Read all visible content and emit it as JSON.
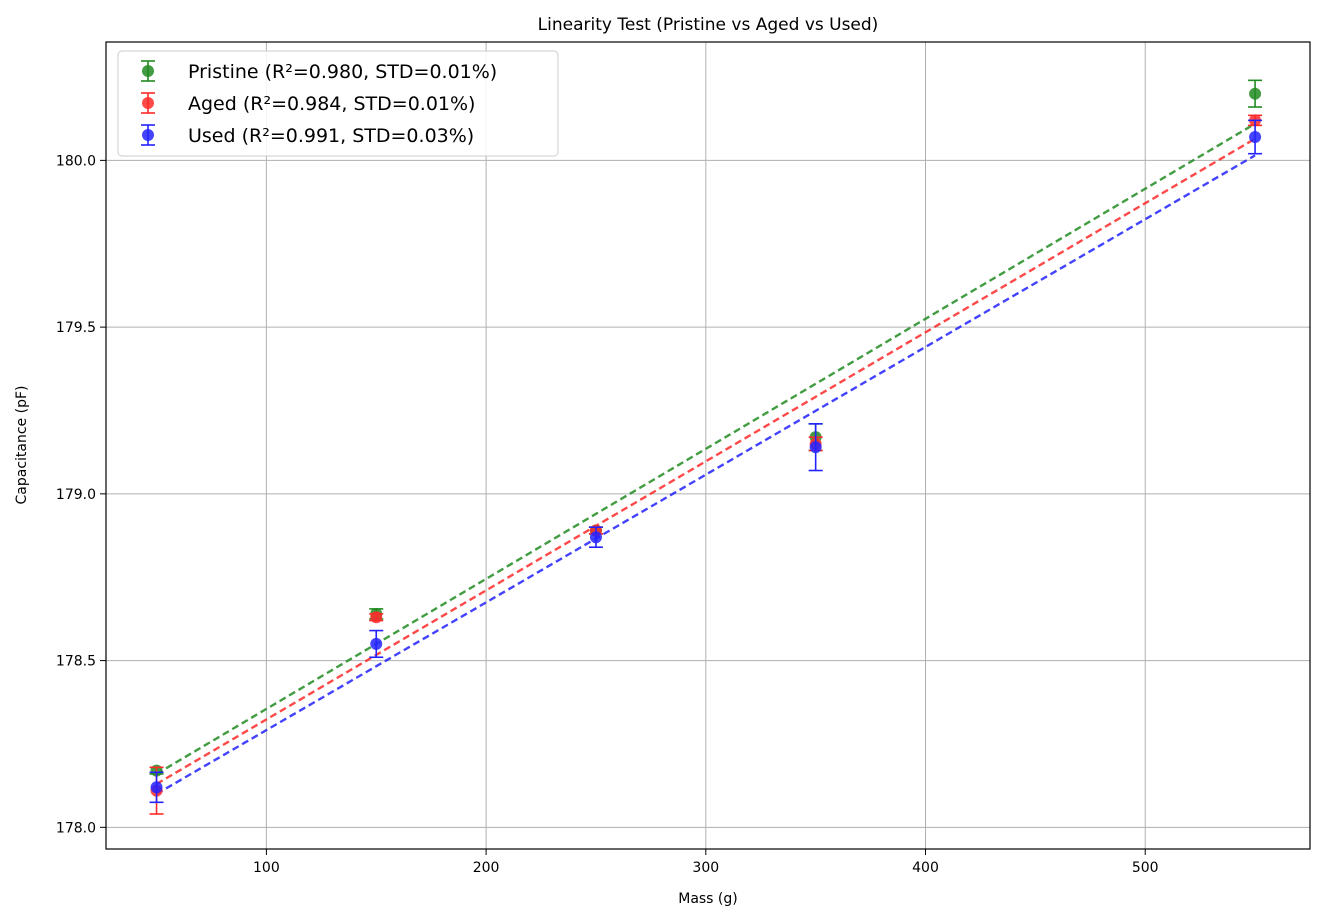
{
  "chart_data": {
    "type": "scatter",
    "title": "Linearity Test (Pristine vs Aged vs Used)",
    "xlabel": "Mass (g)",
    "ylabel": "Capacitance (pF)",
    "xlim": [
      27,
      575
    ],
    "ylim": [
      177.935,
      180.355
    ],
    "xticks": [
      100,
      200,
      300,
      400,
      500
    ],
    "yticks": [
      178.0,
      178.5,
      179.0,
      179.5,
      180.0
    ],
    "xtick_labels": [
      "100",
      "200",
      "300",
      "400",
      "500"
    ],
    "ytick_labels": [
      "178.0",
      "178.5",
      "179.0",
      "179.5",
      "180.0"
    ],
    "grid": true,
    "legend_position": "top-left",
    "x": [
      50,
      150,
      250,
      350,
      550
    ],
    "series": [
      {
        "name": "Pristine (R²=0.980, STD=0.01%)",
        "color": "#228b22",
        "values": [
          178.17,
          178.64,
          178.89,
          179.17,
          180.2
        ],
        "errors": [
          0.01,
          0.015,
          0.01,
          0.04,
          0.04
        ],
        "fit": [
          178.16,
          180.11
        ]
      },
      {
        "name": "Aged (R²=0.984, STD=0.01%)",
        "color": "#ff2a2a",
        "values": [
          178.11,
          178.63,
          178.89,
          179.15,
          180.12
        ],
        "errors": [
          0.07,
          0.01,
          0.01,
          0.02,
          0.015
        ],
        "fit": [
          178.13,
          180.065
        ]
      },
      {
        "name": "Used (R²=0.991, STD=0.03%)",
        "color": "#2323ff",
        "values": [
          178.12,
          178.55,
          178.87,
          179.14,
          180.07
        ],
        "errors": [
          0.045,
          0.04,
          0.03,
          0.07,
          0.05
        ],
        "fit": [
          178.1,
          180.015
        ]
      }
    ]
  }
}
